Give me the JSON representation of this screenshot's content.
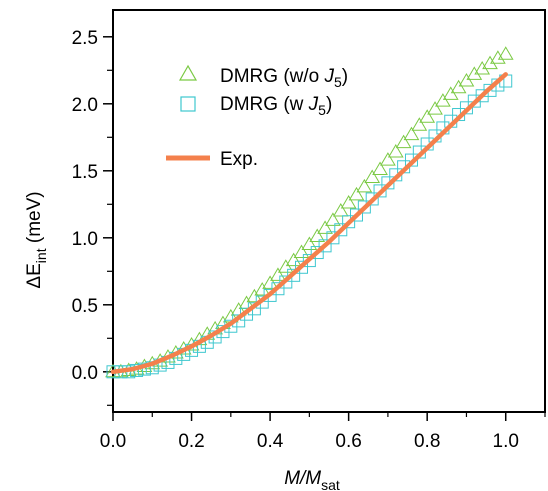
{
  "chart_data": {
    "type": "scatter",
    "xlabel": {
      "main": "M/M",
      "sub": "sat"
    },
    "ylabel": {
      "pre": "ΔE",
      "sub": "int",
      "post": " (meV)"
    },
    "xlim": [
      0.0,
      1.1
    ],
    "ylim": [
      -0.3,
      2.7
    ],
    "xticks": [
      "0.0",
      "0.2",
      "0.4",
      "0.6",
      "0.8",
      "1.0"
    ],
    "yticks": [
      "0.0",
      "0.5",
      "1.0",
      "1.5",
      "2.0",
      "2.5"
    ],
    "grid": false,
    "legend_position": "top-left",
    "series": [
      {
        "name": "DMRG (w/o J5)",
        "legend": {
          "pre": "DMRG (w/o ",
          "italic": "J",
          "sub": "5",
          "post": ")"
        },
        "marker": "triangle",
        "color": "#7ac943",
        "x": [
          0.0,
          0.02,
          0.04,
          0.06,
          0.08,
          0.1,
          0.12,
          0.14,
          0.16,
          0.18,
          0.2,
          0.22,
          0.24,
          0.26,
          0.28,
          0.3,
          0.32,
          0.34,
          0.36,
          0.38,
          0.4,
          0.42,
          0.44,
          0.46,
          0.48,
          0.5,
          0.52,
          0.54,
          0.56,
          0.58,
          0.6,
          0.62,
          0.64,
          0.66,
          0.68,
          0.7,
          0.72,
          0.74,
          0.76,
          0.78,
          0.8,
          0.82,
          0.84,
          0.86,
          0.88,
          0.9,
          0.92,
          0.94,
          0.96,
          0.98,
          1.0
        ],
        "y": [
          0.0,
          0.0,
          0.01,
          0.02,
          0.04,
          0.06,
          0.08,
          0.11,
          0.14,
          0.17,
          0.2,
          0.24,
          0.28,
          0.32,
          0.36,
          0.41,
          0.46,
          0.51,
          0.56,
          0.61,
          0.66,
          0.72,
          0.78,
          0.83,
          0.89,
          0.95,
          1.01,
          1.07,
          1.13,
          1.2,
          1.26,
          1.32,
          1.38,
          1.45,
          1.51,
          1.58,
          1.64,
          1.71,
          1.77,
          1.84,
          1.9,
          1.96,
          2.02,
          2.07,
          2.12,
          2.17,
          2.22,
          2.26,
          2.3,
          2.34,
          2.37
        ]
      },
      {
        "name": "DMRG (w J5)",
        "legend": {
          "pre": "DMRG (w ",
          "italic": "J",
          "sub": "5",
          "post": ")"
        },
        "marker": "square",
        "color": "#3ec7cf",
        "x": [
          0.0,
          0.02,
          0.04,
          0.06,
          0.08,
          0.1,
          0.12,
          0.14,
          0.16,
          0.18,
          0.2,
          0.22,
          0.24,
          0.26,
          0.28,
          0.3,
          0.32,
          0.34,
          0.36,
          0.38,
          0.4,
          0.42,
          0.44,
          0.46,
          0.48,
          0.5,
          0.52,
          0.54,
          0.56,
          0.58,
          0.6,
          0.62,
          0.64,
          0.66,
          0.68,
          0.7,
          0.72,
          0.74,
          0.76,
          0.78,
          0.8,
          0.82,
          0.84,
          0.86,
          0.88,
          0.9,
          0.92,
          0.94,
          0.96,
          0.98,
          1.0
        ],
        "y": [
          0.0,
          0.0,
          0.0,
          0.01,
          0.02,
          0.03,
          0.05,
          0.07,
          0.1,
          0.13,
          0.16,
          0.19,
          0.22,
          0.26,
          0.3,
          0.34,
          0.38,
          0.43,
          0.47,
          0.52,
          0.57,
          0.62,
          0.67,
          0.72,
          0.78,
          0.83,
          0.89,
          0.94,
          1.0,
          1.06,
          1.12,
          1.17,
          1.23,
          1.29,
          1.35,
          1.41,
          1.47,
          1.53,
          1.58,
          1.64,
          1.7,
          1.76,
          1.82,
          1.87,
          1.92,
          1.97,
          2.02,
          2.06,
          2.1,
          2.14,
          2.17
        ]
      },
      {
        "name": "Exp.",
        "legend": {
          "pre": "Exp.",
          "italic": "",
          "sub": "",
          "post": ""
        },
        "marker": "line",
        "color": "#f4804c",
        "x": [
          0.0,
          0.05,
          0.1,
          0.15,
          0.2,
          0.25,
          0.3,
          0.35,
          0.4,
          0.45,
          0.5,
          0.55,
          0.6,
          0.65,
          0.7,
          0.75,
          0.8,
          0.85,
          0.9,
          0.95,
          1.0
        ],
        "y": [
          0.0,
          0.02,
          0.06,
          0.12,
          0.19,
          0.27,
          0.36,
          0.47,
          0.58,
          0.71,
          0.84,
          0.97,
          1.11,
          1.25,
          1.39,
          1.53,
          1.67,
          1.81,
          1.95,
          2.09,
          2.22
        ]
      }
    ]
  }
}
